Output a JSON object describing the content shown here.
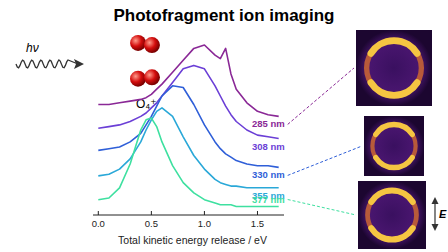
{
  "chart_data": {
    "type": "line",
    "title": "Photofragment ion imaging",
    "x_label": "Total kinetic energy release / eV",
    "x": [
      0,
      0.1,
      0.2,
      0.3,
      0.4,
      0.45,
      0.5,
      0.55,
      0.6,
      0.7,
      0.8,
      0.9,
      1.0,
      1.1,
      1.15,
      1.2,
      1.25,
      1.3,
      1.4,
      1.5,
      1.6,
      1.7
    ],
    "series": [
      {
        "name": "285 nm",
        "color": "#8a2896",
        "values": [
          6.5,
          6.5,
          6.6,
          6.7,
          6.8,
          6.9,
          7.1,
          7.4,
          7.7,
          8.4,
          9.1,
          9.8,
          10.0,
          9.4,
          9.2,
          9.8,
          8.3,
          7.4,
          6.6,
          6.1,
          5.9,
          5.8
        ]
      },
      {
        "name": "308 nm",
        "color": "#6b3fd6",
        "values": [
          5.1,
          5.2,
          5.3,
          5.5,
          5.8,
          6.0,
          6.3,
          6.6,
          7.0,
          7.8,
          8.6,
          8.8,
          8.6,
          7.6,
          7.0,
          6.4,
          5.9,
          5.5,
          5.0,
          4.7,
          4.6,
          4.5
        ]
      },
      {
        "name": "330 nm",
        "color": "#2f5fd8",
        "values": [
          3.8,
          3.9,
          4.0,
          4.3,
          4.8,
          5.3,
          5.8,
          6.4,
          7.0,
          7.6,
          7.5,
          6.5,
          5.3,
          4.3,
          3.9,
          3.6,
          3.4,
          3.2,
          3.0,
          2.9,
          2.9,
          2.8
        ]
      },
      {
        "name": "355 nm",
        "color": "#2aa8d8",
        "values": [
          2.3,
          2.4,
          2.7,
          3.3,
          4.3,
          5.0,
          5.6,
          6.1,
          6.3,
          5.8,
          4.6,
          3.5,
          2.7,
          2.1,
          1.9,
          1.8,
          1.7,
          1.7,
          1.6,
          1.6,
          1.6,
          1.6
        ]
      },
      {
        "name": "377 nm",
        "color": "#3ee0a0",
        "values": [
          0.9,
          1.0,
          1.6,
          3.0,
          5.0,
          5.6,
          5.7,
          5.2,
          4.3,
          2.9,
          1.9,
          1.3,
          0.9,
          0.7,
          0.6,
          0.6,
          0.6,
          0.5,
          0.5,
          0.5,
          0.5,
          0.5
        ]
      }
    ],
    "xlim": [
      -0.05,
      1.75
    ],
    "xticks": [
      {
        "value": 0,
        "label": "0.0"
      },
      {
        "value": 0.5,
        "label": "0.5"
      },
      {
        "value": 1,
        "label": "1.0"
      },
      {
        "value": 1.5,
        "label": "1.5"
      }
    ],
    "ylim": [
      0,
      10.5
    ],
    "tick_labels": "x",
    "annotations": [
      "hν",
      "O₄⁺",
      "E"
    ]
  }
}
